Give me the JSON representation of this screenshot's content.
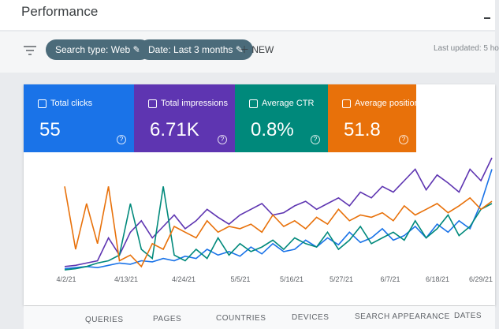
{
  "header": {
    "title": "Performance"
  },
  "filters": {
    "chips": [
      "Search type: Web",
      "Date: Last 3 months"
    ],
    "new": "NEW",
    "last_updated": "Last updated: 5 ho"
  },
  "cards": [
    {
      "label": "Total clicks",
      "value": "55",
      "color": "#1a73e8"
    },
    {
      "label": "Total impressions",
      "value": "6.71K",
      "color": "#5e35b1"
    },
    {
      "label": "Average CTR",
      "value": "0.8%",
      "color": "#00897b"
    },
    {
      "label": "Average position",
      "value": "51.8",
      "color": "#e8710a"
    }
  ],
  "chart_data": {
    "type": "line",
    "x_labels": [
      "4/2/21",
      "4/13/21",
      "4/24/21",
      "5/5/21",
      "5/16/21",
      "5/27/21",
      "6/7/21",
      "6/18/21",
      "6/29/21"
    ],
    "ylim": [
      0,
      100
    ],
    "series": [
      {
        "color": "#1a73e8",
        "values": [
          3,
          4,
          5,
          4,
          6,
          8,
          7,
          10,
          9,
          12,
          10,
          14,
          12,
          20,
          15,
          18,
          14,
          22,
          16,
          25,
          18,
          20,
          28,
          22,
          30,
          24,
          35,
          26,
          30,
          38,
          28,
          32,
          40,
          30,
          42,
          35,
          45,
          38,
          60,
          90
        ]
      },
      {
        "color": "#5e35b1",
        "values": [
          5,
          6,
          8,
          10,
          30,
          15,
          35,
          45,
          30,
          40,
          50,
          38,
          45,
          55,
          48,
          42,
          50,
          55,
          60,
          50,
          52,
          58,
          62,
          55,
          60,
          65,
          58,
          70,
          65,
          75,
          70,
          80,
          90,
          72,
          85,
          78,
          70,
          90,
          80,
          100
        ]
      },
      {
        "color": "#00897b",
        "values": [
          2,
          3,
          5,
          8,
          10,
          15,
          60,
          20,
          12,
          75,
          15,
          10,
          20,
          12,
          30,
          15,
          25,
          18,
          22,
          28,
          20,
          30,
          25,
          22,
          35,
          20,
          28,
          40,
          25,
          30,
          35,
          28,
          45,
          30,
          38,
          50,
          32,
          40,
          55,
          60
        ]
      },
      {
        "color": "#e8710a",
        "values": [
          75,
          20,
          60,
          25,
          75,
          10,
          15,
          5,
          25,
          20,
          40,
          35,
          30,
          45,
          35,
          40,
          38,
          42,
          35,
          50,
          40,
          45,
          38,
          48,
          42,
          55,
          45,
          50,
          48,
          52,
          45,
          58,
          50,
          55,
          60,
          52,
          58,
          65,
          55,
          62
        ]
      }
    ]
  },
  "tabs": [
    "QUERIES",
    "PAGES",
    "COUNTRIES",
    "DEVICES",
    "SEARCH APPEARANCE",
    "DATES"
  ]
}
